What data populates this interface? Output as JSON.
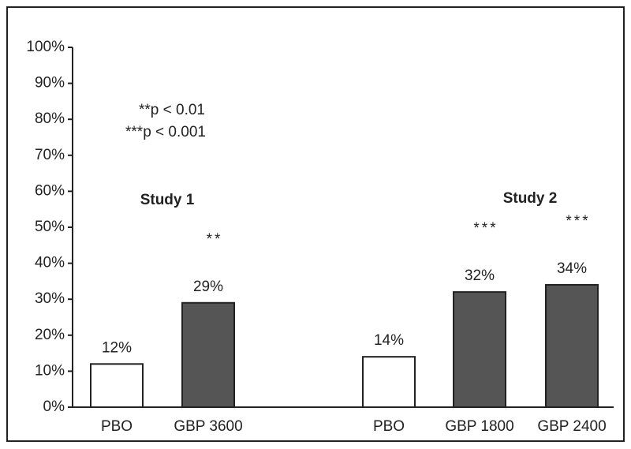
{
  "chart_data": {
    "type": "bar",
    "categories": [
      "PBO",
      "GBP 3600",
      "PBO",
      "GBP 1800",
      "GBP 2400"
    ],
    "values": [
      12,
      29,
      14,
      32,
      34
    ],
    "value_labels": [
      "12%",
      "29%",
      "14%",
      "32%",
      "34%"
    ],
    "colors": [
      "#ffffff",
      "#555555",
      "#ffffff",
      "#555555",
      "#555555"
    ],
    "significance": [
      null,
      "**",
      null,
      "***",
      "***"
    ],
    "groups": [
      "Study 1",
      "Study 2"
    ],
    "legend_notes": [
      "**p < 0.01",
      "***p < 0.001"
    ],
    "ylim": [
      0,
      100
    ],
    "yticks": [
      {
        "value": 0,
        "label": "0%"
      },
      {
        "value": 10,
        "label": "10%"
      },
      {
        "value": 20,
        "label": "20%"
      },
      {
        "value": 30,
        "label": "30%"
      },
      {
        "value": 40,
        "label": "40%"
      },
      {
        "value": 50,
        "label": "50%"
      },
      {
        "value": 60,
        "label": "60%"
      },
      {
        "value": 70,
        "label": "70%"
      },
      {
        "value": 80,
        "label": "80%"
      },
      {
        "value": 90,
        "label": "90%"
      },
      {
        "value": 100,
        "label": "100%"
      }
    ],
    "grid": false
  }
}
